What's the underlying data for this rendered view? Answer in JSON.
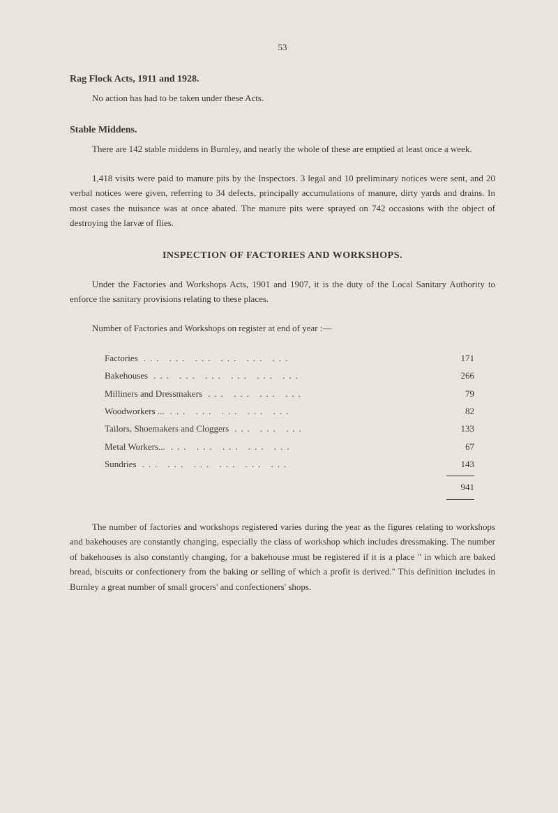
{
  "page_number": "53",
  "sections": {
    "rag_flock": {
      "title": "Rag Flock Acts, 1911 and 1928.",
      "text": "No action has had to be taken under these Acts."
    },
    "stable_middens": {
      "title": "Stable Middens.",
      "para1": "There are 142 stable middens in Burnley, and nearly the whole of these are emptied at least once a week.",
      "para2": "1,418 visits were paid to manure pits by the Inspectors. 3 legal and 10 preliminary notices were sent, and 20 verbal notices were given, referring to 34 defects, principally accumulations of manure, dirty yards and drains. In most cases the nuisance was at once abated. The manure pits were sprayed on 742 occasions with the object of destroying the larvæ of flies."
    },
    "inspection": {
      "heading": "INSPECTION OF FACTORIES AND WORKSHOPS.",
      "intro": "Under the Factories and Workshops Acts, 1901 and 1907, it is the duty of the Local Sanitary Authority to enforce the sanitary provisions relating to these places.",
      "table_intro": "Number of Factories and Workshops on register at end of year :—",
      "rows": [
        {
          "label": "Factories",
          "dots": "...   ...   ...   ...   ...   ...",
          "value": "171"
        },
        {
          "label": "Bakehouses",
          "dots": "...   ...   ...   ...   ...   ...",
          "value": "266"
        },
        {
          "label": "Milliners and Dressmakers",
          "dots": "...   ...   ...   ...",
          "value": "79"
        },
        {
          "label": "Woodworkers ...",
          "dots": "...   ...   ...   ...   ...",
          "value": "82"
        },
        {
          "label": "Tailors, Shoemakers and Cloggers",
          "dots": "...   ...   ...",
          "value": "133"
        },
        {
          "label": "Metal Workers...",
          "dots": "...   ...   ...   ...   ...",
          "value": "67"
        },
        {
          "label": "Sundries",
          "dots": "...   ...   ...   ...   ...   ...",
          "value": "143"
        }
      ],
      "total": "941",
      "closing": "The number of factories and workshops registered varies during the year as the figures relating to workshops and bakehouses are constantly changing, especially the class of workshop which includes dressmaking. The number of bakehouses is also constantly changing, for a bakehouse must be registered if it is a place \" in which are baked bread, biscuits or confectionery from the baking or selling of which a profit is derived.\" This definition includes in Burnley a great number of small grocers' and confectioners' shops."
    }
  }
}
